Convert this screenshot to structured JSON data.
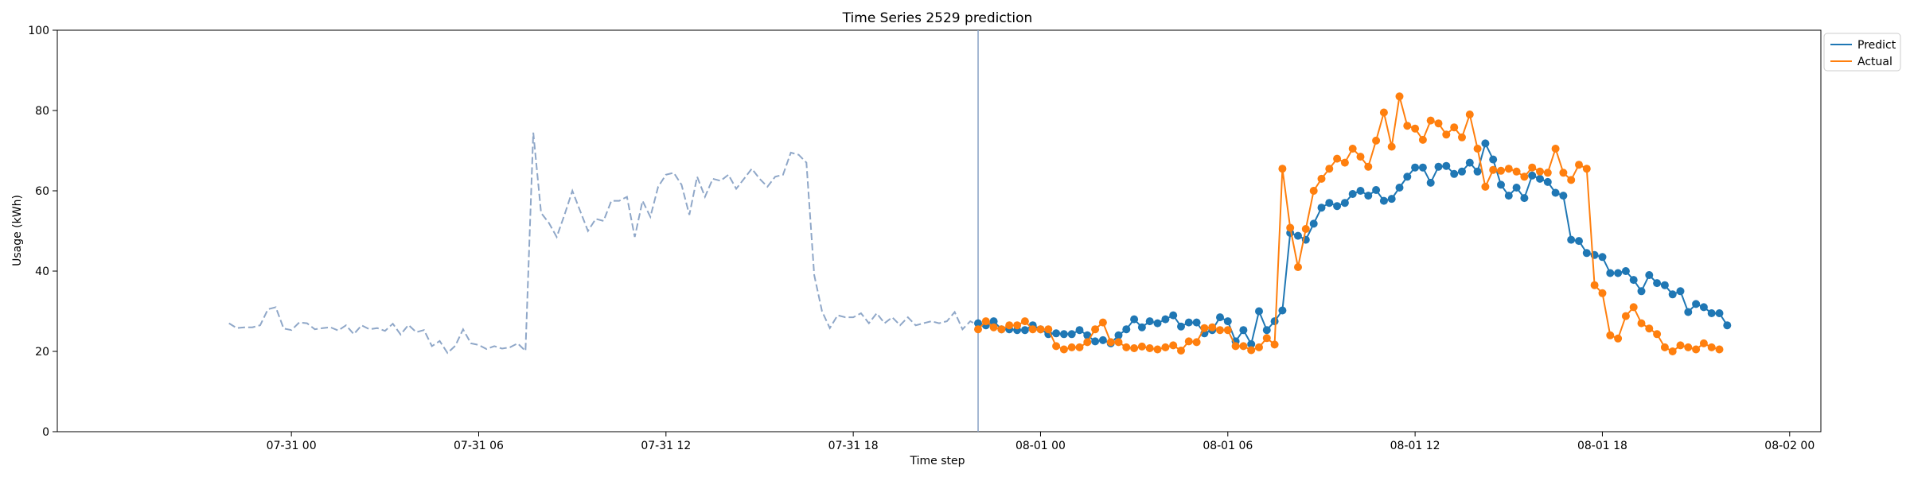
{
  "chart_data": {
    "type": "line",
    "title": "Time Series 2529 prediction",
    "xlabel": "Time step",
    "ylabel": "Usage (kWh)",
    "ylim": [
      0,
      100
    ],
    "xlim": [
      "2023-07-30 16:30",
      "2023-08-02 01:00"
    ],
    "x_ticks": [
      "07-31 00",
      "07-31 06",
      "07-31 12",
      "07-31 18",
      "08-01 00",
      "08-01 06",
      "08-01 12",
      "08-01 18",
      "08-02 00"
    ],
    "y_ticks": [
      0,
      20,
      40,
      60,
      80,
      100
    ],
    "grid": false,
    "legend": "top-right",
    "forecast_start": "07-31 22:00",
    "history": {
      "style": "dashed",
      "color": "#8fa7c8",
      "start": "07-30 22:00",
      "interval_minutes": 15,
      "values": [
        27,
        25.8,
        26,
        26,
        26.5,
        30.5,
        31,
        25.7,
        25.3,
        27.2,
        27,
        25.5,
        25.8,
        26,
        25.2,
        26.5,
        24.3,
        26.5,
        25.5,
        25.8,
        25.1,
        26.9,
        24.2,
        26.6,
        24.8,
        25.3,
        21.3,
        22.6,
        19.6,
        21.4,
        25.5,
        22,
        21.6,
        20.6,
        21.3,
        20.7,
        21,
        22,
        20.1,
        74.5,
        54.5,
        52,
        48.5,
        54,
        60,
        55,
        50,
        53,
        52.5,
        57.5,
        57.5,
        58.5,
        48.5,
        57.5,
        53.5,
        61,
        64,
        64.5,
        61.5,
        54,
        63.5,
        58.5,
        63,
        62.5,
        64,
        60.5,
        63,
        65.5,
        63,
        61,
        63.5,
        64,
        69.5,
        69,
        67,
        39,
        30,
        25.8,
        29,
        28.5,
        28.5,
        29.5,
        27,
        29.5,
        27,
        28.5,
        26.5,
        28.5,
        26.5,
        27,
        27.5,
        27,
        27.5,
        29.8,
        25.5,
        27.5,
        26.5
      ]
    },
    "series": [
      {
        "name": "Predict",
        "color": "#1f77b4",
        "start": "07-31 22:00",
        "interval_minutes": 15,
        "values": [
          27,
          26.5,
          27.5,
          25.5,
          25.5,
          25.3,
          25.3,
          26.5,
          25.5,
          24.3,
          24.5,
          24.3,
          24.3,
          25.3,
          24,
          22.5,
          22.8,
          22,
          24,
          25.5,
          28,
          26,
          27.5,
          27,
          28,
          29,
          26.2,
          27.2,
          27.2,
          24.5,
          25.3,
          28.5,
          27.5,
          22.5,
          25.3,
          21.8,
          30,
          25.3,
          27.5,
          30.2,
          49.5,
          48.8,
          47.8,
          51.8,
          55.8,
          57,
          56.2,
          57,
          59.2,
          60,
          58.8,
          60.2,
          57.5,
          58,
          60.8,
          63.5,
          65.8,
          65.8,
          62,
          66,
          66.2,
          64.2,
          64.8,
          67,
          64.8,
          71.8,
          67.8,
          61.5,
          58.8,
          60.8,
          58.2,
          63.8,
          63,
          62.2,
          59.5,
          58.8,
          47.8,
          47.5,
          44.5,
          44,
          43.5,
          39.5,
          39.5,
          40,
          37.8,
          35,
          39,
          37,
          36.5,
          34.2,
          35,
          29.8,
          31.8,
          31,
          29.5,
          29.5,
          26.5
        ]
      },
      {
        "name": "Actual",
        "color": "#ff7f0e",
        "start": "07-31 22:00",
        "interval_minutes": 15,
        "values": [
          25.5,
          27.5,
          26,
          25.5,
          26.5,
          26.5,
          27.5,
          25.5,
          25.5,
          25.5,
          21.3,
          20.5,
          21,
          21,
          22.3,
          25.5,
          27.2,
          22.3,
          22.3,
          21,
          20.8,
          21.2,
          20.8,
          20.5,
          21,
          21.5,
          20.2,
          22.5,
          22.3,
          25.8,
          26,
          25.3,
          25.3,
          21.3,
          21.3,
          20.3,
          21,
          23.3,
          21.7,
          65.5,
          50.8,
          41,
          50.5,
          60,
          63,
          65.5,
          68,
          67,
          70.5,
          68.5,
          66,
          72.5,
          79.5,
          71,
          83.5,
          76.2,
          75.5,
          72.7,
          77.5,
          76.8,
          74,
          75.8,
          73.3,
          79,
          70.5,
          61,
          65.2,
          65,
          65.5,
          64.8,
          63.5,
          65.8,
          64.8,
          64.5,
          70.5,
          64.5,
          62.7,
          66.5,
          65.5,
          36.5,
          34.5,
          24,
          23.2,
          28.8,
          31,
          27,
          25.7,
          24.3,
          21,
          20,
          21.5,
          21,
          20.5,
          22,
          21,
          20.5
        ]
      }
    ]
  }
}
